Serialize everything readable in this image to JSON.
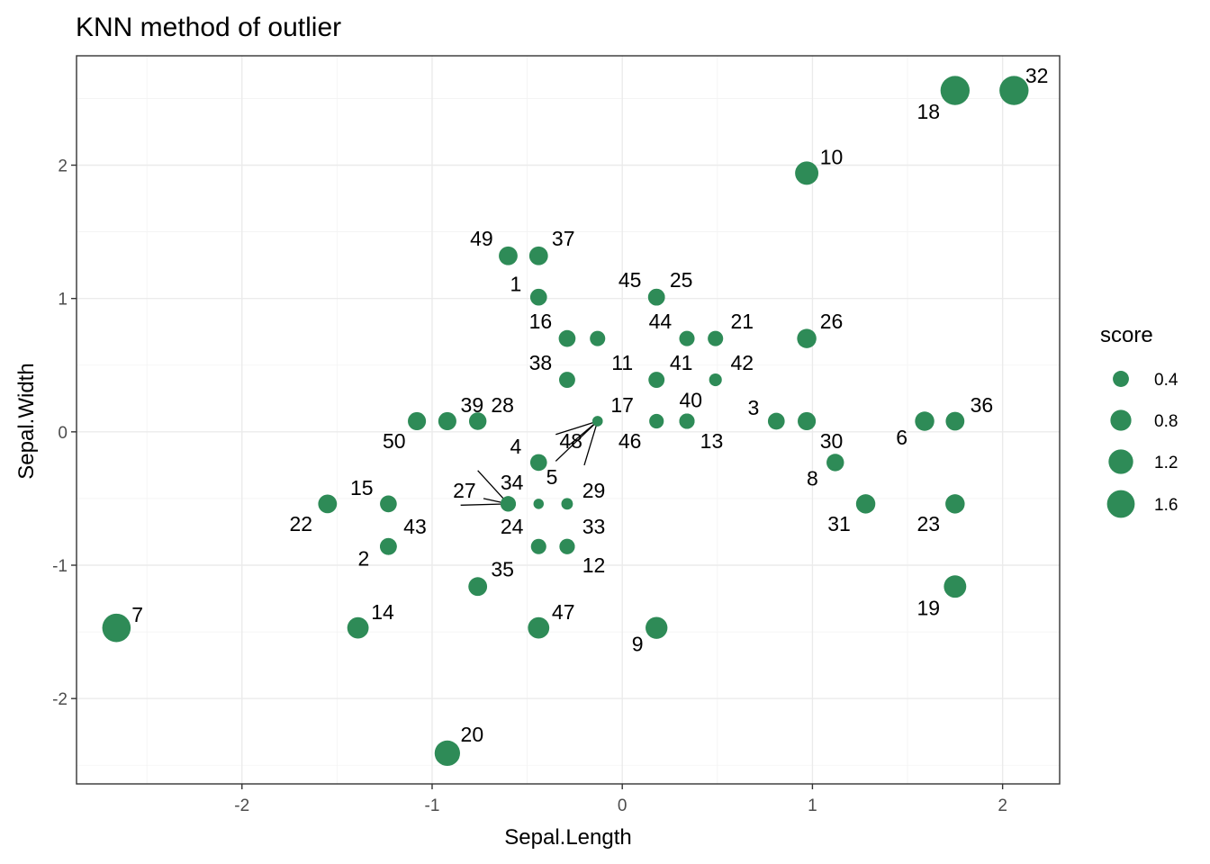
{
  "chart_data": {
    "type": "scatter",
    "title": "KNN method of outlier",
    "xlabel": "Sepal.Length",
    "ylabel": "Sepal.Width",
    "xlim": [
      -2.87,
      2.3
    ],
    "ylim": [
      -2.64,
      2.82
    ],
    "x_ticks": [
      -2,
      -1,
      0,
      1,
      2
    ],
    "y_ticks": [
      -2,
      -1,
      0,
      1,
      2
    ],
    "x_tick_labels": [
      "-2",
      "-1",
      "0",
      "1",
      "2"
    ],
    "y_tick_labels": [
      "-2",
      "-1",
      "0",
      "1",
      "2"
    ],
    "grid": true,
    "point_color": "#2e8b57",
    "legend": {
      "title": "score",
      "placement": "right",
      "entries": [
        {
          "label": "0.4",
          "value": 0.4
        },
        {
          "label": "0.8",
          "value": 0.8
        },
        {
          "label": "1.2",
          "value": 1.2
        },
        {
          "label": "1.6",
          "value": 1.6
        }
      ]
    },
    "points": [
      {
        "id": "1",
        "x": -0.44,
        "y": 1.01,
        "score": 0.45
      },
      {
        "id": "2",
        "x": -1.23,
        "y": -0.86,
        "score": 0.45
      },
      {
        "id": "3",
        "x": 0.81,
        "y": 0.08,
        "score": 0.45
      },
      {
        "id": "4",
        "x": -0.44,
        "y": -0.23,
        "score": 0.45
      },
      {
        "id": "5",
        "x": -0.44,
        "y": -0.54,
        "score": 0.1
      },
      {
        "id": "6",
        "x": 1.59,
        "y": 0.08,
        "score": 0.65
      },
      {
        "id": "7",
        "x": -2.66,
        "y": -1.47,
        "score": 1.7
      },
      {
        "id": "8",
        "x": 1.12,
        "y": -0.23,
        "score": 0.5
      },
      {
        "id": "9",
        "x": 0.18,
        "y": -1.47,
        "score": 0.9
      },
      {
        "id": "10",
        "x": 0.97,
        "y": 1.94,
        "score": 1.05
      },
      {
        "id": "11",
        "x": -0.13,
        "y": 0.7,
        "score": 0.35
      },
      {
        "id": "12",
        "x": -0.29,
        "y": -0.86,
        "score": 0.35
      },
      {
        "id": "13",
        "x": 0.34,
        "y": 0.08,
        "score": 0.35
      },
      {
        "id": "14",
        "x": -1.39,
        "y": -1.47,
        "score": 0.85
      },
      {
        "id": "15",
        "x": -1.23,
        "y": -0.54,
        "score": 0.45
      },
      {
        "id": "16",
        "x": -0.29,
        "y": 0.7,
        "score": 0.45
      },
      {
        "id": "17",
        "x": -0.13,
        "y": 0.08,
        "score": 0.1
      },
      {
        "id": "18",
        "x": 1.75,
        "y": 2.56,
        "score": 1.8
      },
      {
        "id": "19",
        "x": 1.75,
        "y": -1.16,
        "score": 0.95
      },
      {
        "id": "20",
        "x": -0.92,
        "y": -2.41,
        "score": 1.3
      },
      {
        "id": "21",
        "x": 0.49,
        "y": 0.7,
        "score": 0.35
      },
      {
        "id": "22",
        "x": -1.55,
        "y": -0.54,
        "score": 0.6
      },
      {
        "id": "23",
        "x": 1.75,
        "y": -0.54,
        "score": 0.65
      },
      {
        "id": "24",
        "x": -0.44,
        "y": -0.86,
        "score": 0.35
      },
      {
        "id": "25",
        "x": 0.18,
        "y": 1.01,
        "score": 0.45
      },
      {
        "id": "26",
        "x": 0.97,
        "y": 0.7,
        "score": 0.65
      },
      {
        "id": "27",
        "x": -0.6,
        "y": -0.54,
        "score": 0.35
      },
      {
        "id": "28",
        "x": -0.76,
        "y": 0.08,
        "score": 0.5
      },
      {
        "id": "29",
        "x": -0.29,
        "y": -0.54,
        "score": 0.15
      },
      {
        "id": "30",
        "x": 0.97,
        "y": 0.08,
        "score": 0.55
      },
      {
        "id": "31",
        "x": 1.28,
        "y": -0.54,
        "score": 0.65
      },
      {
        "id": "32",
        "x": 2.06,
        "y": 2.56,
        "score": 1.8
      },
      {
        "id": "33",
        "x": -0.29,
        "y": -0.86,
        "score": 0.35
      },
      {
        "id": "34",
        "x": -0.6,
        "y": -0.54,
        "score": 0.35
      },
      {
        "id": "35",
        "x": -0.76,
        "y": -1.16,
        "score": 0.6
      },
      {
        "id": "36",
        "x": 1.75,
        "y": 0.08,
        "score": 0.6
      },
      {
        "id": "37",
        "x": -0.44,
        "y": 1.32,
        "score": 0.6
      },
      {
        "id": "38",
        "x": -0.29,
        "y": 0.39,
        "score": 0.4
      },
      {
        "id": "39",
        "x": -0.92,
        "y": 0.08,
        "score": 0.55
      },
      {
        "id": "40",
        "x": 0.34,
        "y": 0.08,
        "score": 0.35
      },
      {
        "id": "41",
        "x": 0.18,
        "y": 0.39,
        "score": 0.4
      },
      {
        "id": "42",
        "x": 0.49,
        "y": 0.39,
        "score": 0.2
      },
      {
        "id": "43",
        "x": -1.23,
        "y": -0.86,
        "score": 0.45
      },
      {
        "id": "44",
        "x": 0.34,
        "y": 0.7,
        "score": 0.35
      },
      {
        "id": "45",
        "x": 0.18,
        "y": 1.01,
        "score": 0.45
      },
      {
        "id": "46",
        "x": 0.18,
        "y": 0.08,
        "score": 0.3
      },
      {
        "id": "47",
        "x": -0.44,
        "y": -1.47,
        "score": 0.85
      },
      {
        "id": "48",
        "x": -0.13,
        "y": 0.08,
        "score": 0.1
      },
      {
        "id": "49",
        "x": -0.6,
        "y": 1.32,
        "score": 0.6
      },
      {
        "id": "50",
        "x": -1.08,
        "y": 0.08,
        "score": 0.55
      }
    ],
    "annotations": [
      {
        "text": "1",
        "x": -0.56,
        "y": 1.11
      },
      {
        "text": "2",
        "x": -1.36,
        "y": -0.95
      },
      {
        "text": "3",
        "x": 0.69,
        "y": 0.18
      },
      {
        "text": "4",
        "x": -0.56,
        "y": -0.11
      },
      {
        "text": "5",
        "x": -0.37,
        "y": -0.34
      },
      {
        "text": "6",
        "x": 1.47,
        "y": -0.04
      },
      {
        "text": "7",
        "x": -2.55,
        "y": -1.37
      },
      {
        "text": "8",
        "x": 1.0,
        "y": -0.35
      },
      {
        "text": "9",
        "x": 0.08,
        "y": -1.59
      },
      {
        "text": "10",
        "x": 1.1,
        "y": 2.06
      },
      {
        "text": "11",
        "x": 0.0,
        "y": 0.52
      },
      {
        "text": "12",
        "x": -0.15,
        "y": -1.0
      },
      {
        "text": "13",
        "x": 0.47,
        "y": -0.07
      },
      {
        "text": "14",
        "x": -1.26,
        "y": -1.35
      },
      {
        "text": "15",
        "x": -1.37,
        "y": -0.42
      },
      {
        "text": "16",
        "x": -0.43,
        "y": 0.83
      },
      {
        "text": "17",
        "x": 0.0,
        "y": 0.2
      },
      {
        "text": "18",
        "x": 1.61,
        "y": 2.4
      },
      {
        "text": "19",
        "x": 1.61,
        "y": -1.32
      },
      {
        "text": "20",
        "x": -0.79,
        "y": -2.27
      },
      {
        "text": "21",
        "x": 0.63,
        "y": 0.83
      },
      {
        "text": "22",
        "x": -1.69,
        "y": -0.69
      },
      {
        "text": "23",
        "x": 1.61,
        "y": -0.69
      },
      {
        "text": "24",
        "x": -0.58,
        "y": -0.71
      },
      {
        "text": "25",
        "x": 0.31,
        "y": 1.14
      },
      {
        "text": "26",
        "x": 1.1,
        "y": 0.83
      },
      {
        "text": "27",
        "x": -0.83,
        "y": -0.44
      },
      {
        "text": "28",
        "x": -0.63,
        "y": 0.2
      },
      {
        "text": "29",
        "x": -0.15,
        "y": -0.44
      },
      {
        "text": "30",
        "x": 1.1,
        "y": -0.07
      },
      {
        "text": "31",
        "x": 1.14,
        "y": -0.69
      },
      {
        "text": "32",
        "x": 2.18,
        "y": 2.67
      },
      {
        "text": "33",
        "x": -0.15,
        "y": -0.71
      },
      {
        "text": "34",
        "x": -0.58,
        "y": -0.38
      },
      {
        "text": "35",
        "x": -0.63,
        "y": -1.03
      },
      {
        "text": "36",
        "x": 1.89,
        "y": 0.2
      },
      {
        "text": "37",
        "x": -0.31,
        "y": 1.45
      },
      {
        "text": "38",
        "x": -0.43,
        "y": 0.52
      },
      {
        "text": "39",
        "x": -0.79,
        "y": 0.2
      },
      {
        "text": "40",
        "x": 0.36,
        "y": 0.24
      },
      {
        "text": "41",
        "x": 0.31,
        "y": 0.52
      },
      {
        "text": "42",
        "x": 0.63,
        "y": 0.52
      },
      {
        "text": "43",
        "x": -1.09,
        "y": -0.71
      },
      {
        "text": "44",
        "x": 0.2,
        "y": 0.83
      },
      {
        "text": "45",
        "x": 0.04,
        "y": 1.14
      },
      {
        "text": "46",
        "x": 0.04,
        "y": -0.07
      },
      {
        "text": "47",
        "x": -0.31,
        "y": -1.35
      },
      {
        "text": "48",
        "x": -0.27,
        "y": -0.07
      },
      {
        "text": "49",
        "x": -0.74,
        "y": 1.45
      },
      {
        "text": "50",
        "x": -1.2,
        "y": -0.07
      }
    ],
    "leader_lines": [
      {
        "from": [
          -0.6,
          -0.54
        ],
        "to": [
          -0.76,
          -0.29
        ]
      },
      {
        "from": [
          -0.6,
          -0.54
        ],
        "to": [
          -0.85,
          -0.55
        ]
      },
      {
        "from": [
          -0.6,
          -0.54
        ],
        "to": [
          -0.73,
          -0.5
        ]
      },
      {
        "from": [
          -0.13,
          0.08
        ],
        "to": [
          -0.35,
          -0.02
        ]
      },
      {
        "from": [
          -0.13,
          0.08
        ],
        "to": [
          -0.35,
          -0.22
        ]
      },
      {
        "from": [
          -0.13,
          0.08
        ],
        "to": [
          -0.2,
          -0.25
        ]
      },
      {
        "from": [
          -0.13,
          0.08
        ],
        "to": [
          -0.28,
          -0.1
        ]
      }
    ]
  }
}
